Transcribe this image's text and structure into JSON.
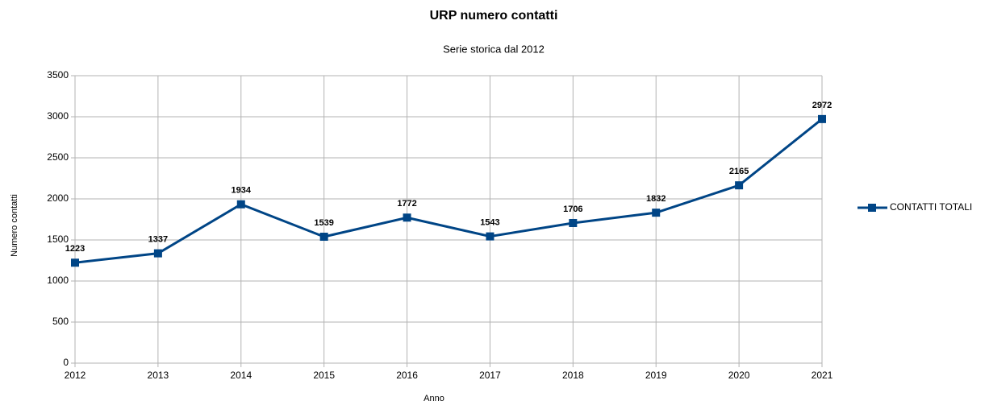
{
  "chart_data": {
    "type": "line",
    "title": "URP numero contatti",
    "subtitle": "Serie storica dal 2012",
    "x_label": "Anno",
    "y_label": "Numero contatti",
    "categories": [
      "2012",
      "2013",
      "2014",
      "2015",
      "2016",
      "2017",
      "2018",
      "2019",
      "2020",
      "2021"
    ],
    "series": [
      {
        "name": "CONTATTI TOTALI",
        "color": "#004586",
        "values": [
          1223,
          1337,
          1934,
          1539,
          1772,
          1543,
          1706,
          1832,
          2165,
          2972
        ]
      }
    ],
    "ylim": [
      0,
      3500
    ],
    "yticks": [
      0,
      500,
      1000,
      1500,
      2000,
      2500,
      3000,
      3500
    ],
    "grid": true,
    "legend": "right"
  }
}
